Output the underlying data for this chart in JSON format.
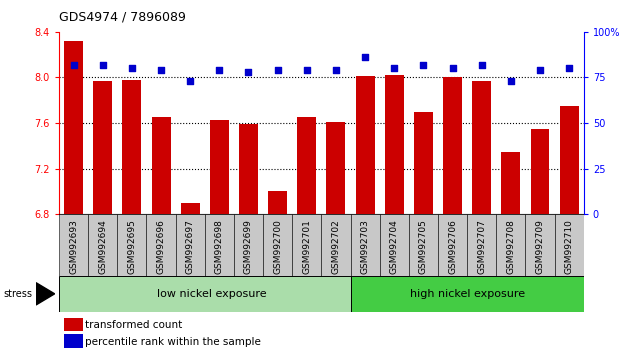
{
  "title": "GDS4974 / 7896089",
  "categories": [
    "GSM992693",
    "GSM992694",
    "GSM992695",
    "GSM992696",
    "GSM992697",
    "GSM992698",
    "GSM992699",
    "GSM992700",
    "GSM992701",
    "GSM992702",
    "GSM992703",
    "GSM992704",
    "GSM992705",
    "GSM992706",
    "GSM992707",
    "GSM992708",
    "GSM992709",
    "GSM992710"
  ],
  "bar_values": [
    8.32,
    7.97,
    7.98,
    7.65,
    6.9,
    7.63,
    7.59,
    7.0,
    7.65,
    7.61,
    8.01,
    8.02,
    7.7,
    8.0,
    7.97,
    7.35,
    7.55,
    7.75
  ],
  "percentile_values": [
    82,
    82,
    80,
    79,
    73,
    79,
    78,
    79,
    79,
    79,
    86,
    80,
    82,
    80,
    82,
    73,
    79,
    80
  ],
  "bar_color": "#cc0000",
  "dot_color": "#0000cc",
  "ylim_left": [
    6.8,
    8.4
  ],
  "ylim_right": [
    0,
    100
  ],
  "yticks_left": [
    6.8,
    7.2,
    7.6,
    8.0,
    8.4
  ],
  "yticks_right": [
    0,
    25,
    50,
    75,
    100
  ],
  "ytick_labels_right": [
    "0",
    "25",
    "50",
    "75",
    "100%"
  ],
  "grid_values": [
    7.2,
    7.6,
    8.0
  ],
  "low_nickel_label": "low nickel exposure",
  "high_nickel_label": "high nickel exposure",
  "low_nickel_count": 10,
  "stress_label": "stress",
  "legend_bar_label": "transformed count",
  "legend_dot_label": "percentile rank within the sample",
  "low_nickel_color": "#aaddaa",
  "high_nickel_color": "#44cc44",
  "band_bg_color": "#c8c8c8",
  "title_fontsize": 9,
  "bar_fontsize": 6.5,
  "label_fontsize": 8,
  "legend_fontsize": 7.5
}
